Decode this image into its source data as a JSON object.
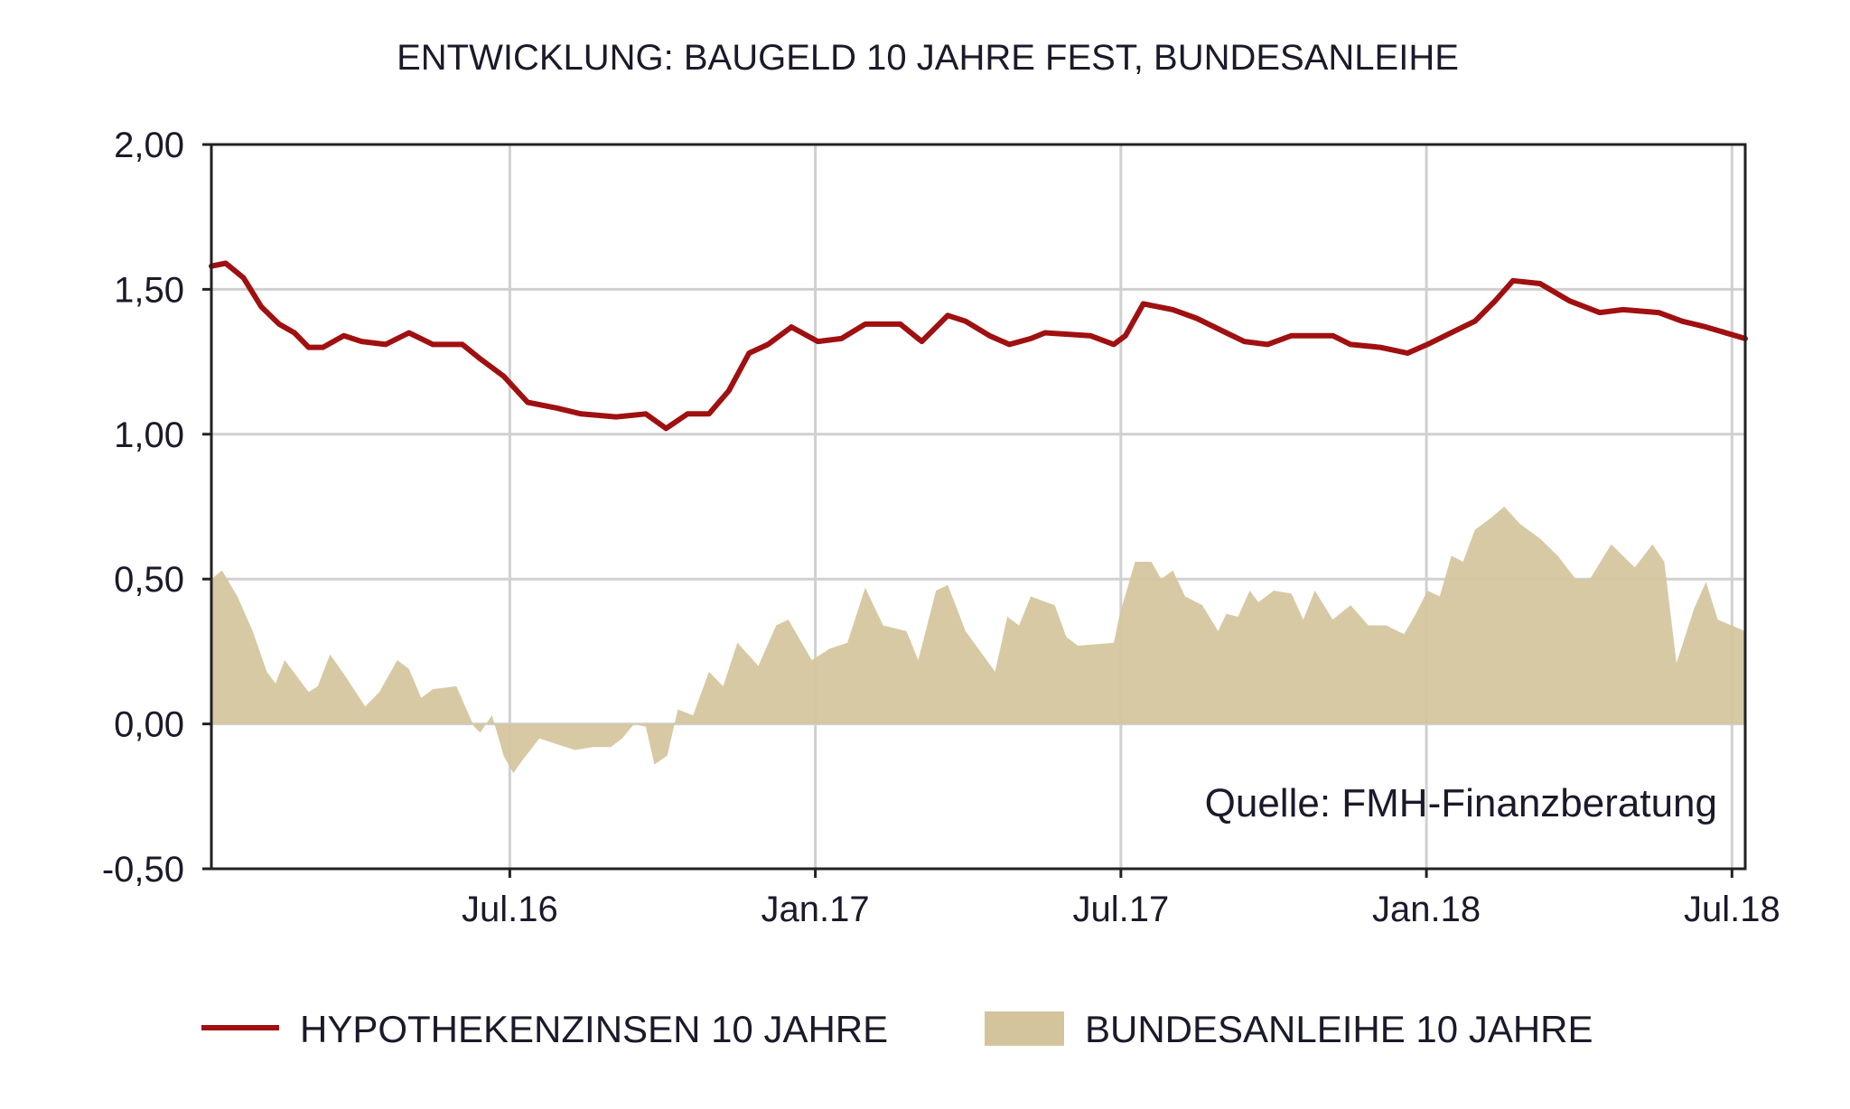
{
  "chart_data": {
    "type": "area",
    "title": "ENTWICKLUNG: BAUGELD 10 JAHRE FEST, BUNDESANLEIHE",
    "xlabel": "",
    "ylabel": "",
    "x_units": "months since Jan 2016",
    "xlim": [
      0.14,
      30.26
    ],
    "ylim": [
      -0.5,
      2.0
    ],
    "yticks": [
      -0.5,
      0.0,
      0.5,
      1.0,
      1.5,
      2.0
    ],
    "ytick_labels": [
      "-0,50",
      "0,00",
      "0,50",
      "1,00",
      "1,50",
      "2,00"
    ],
    "xticks": [
      6,
      12,
      18,
      24,
      30
    ],
    "xtick_labels": [
      "Jul.16",
      "Jan.17",
      "Jul.17",
      "Jan.18",
      "Jul.18"
    ],
    "grid": true,
    "legend_position": "bottom",
    "annotation": "Quelle: FMH-Finanzberatung",
    "series": [
      {
        "name": "HYPOTHEKENZINSEN 10 JAHRE",
        "kind": "line",
        "color": "#a01010",
        "points": [
          [
            0.14,
            1.58
          ],
          [
            0.42,
            1.59
          ],
          [
            0.77,
            1.54
          ],
          [
            1.12,
            1.44
          ],
          [
            1.47,
            1.38
          ],
          [
            1.77,
            1.35
          ],
          [
            2.05,
            1.3
          ],
          [
            2.33,
            1.3
          ],
          [
            2.74,
            1.34
          ],
          [
            3.09,
            1.32
          ],
          [
            3.56,
            1.31
          ],
          [
            4.02,
            1.35
          ],
          [
            4.49,
            1.31
          ],
          [
            5.07,
            1.31
          ],
          [
            5.42,
            1.26
          ],
          [
            5.88,
            1.2
          ],
          [
            6.35,
            1.11
          ],
          [
            6.93,
            1.09
          ],
          [
            7.4,
            1.07
          ],
          [
            8.09,
            1.06
          ],
          [
            8.67,
            1.07
          ],
          [
            9.07,
            1.02
          ],
          [
            9.49,
            1.07
          ],
          [
            9.91,
            1.07
          ],
          [
            10.3,
            1.15
          ],
          [
            10.7,
            1.28
          ],
          [
            11.07,
            1.31
          ],
          [
            11.53,
            1.37
          ],
          [
            12.05,
            1.32
          ],
          [
            12.51,
            1.33
          ],
          [
            12.98,
            1.38
          ],
          [
            13.67,
            1.38
          ],
          [
            14.09,
            1.32
          ],
          [
            14.6,
            1.41
          ],
          [
            14.95,
            1.39
          ],
          [
            15.42,
            1.34
          ],
          [
            15.81,
            1.31
          ],
          [
            16.23,
            1.33
          ],
          [
            16.51,
            1.35
          ],
          [
            17.4,
            1.34
          ],
          [
            17.86,
            1.31
          ],
          [
            18.09,
            1.34
          ],
          [
            18.44,
            1.45
          ],
          [
            19.02,
            1.43
          ],
          [
            19.49,
            1.4
          ],
          [
            20.07,
            1.35
          ],
          [
            20.42,
            1.32
          ],
          [
            20.88,
            1.31
          ],
          [
            21.35,
            1.34
          ],
          [
            22.16,
            1.34
          ],
          [
            22.51,
            1.31
          ],
          [
            23.09,
            1.3
          ],
          [
            23.63,
            1.28
          ],
          [
            24.02,
            1.31
          ],
          [
            24.6,
            1.36
          ],
          [
            24.95,
            1.39
          ],
          [
            25.35,
            1.46
          ],
          [
            25.7,
            1.53
          ],
          [
            26.23,
            1.52
          ],
          [
            26.81,
            1.46
          ],
          [
            27.4,
            1.42
          ],
          [
            27.86,
            1.43
          ],
          [
            28.56,
            1.42
          ],
          [
            29.02,
            1.39
          ],
          [
            29.49,
            1.37
          ],
          [
            30.26,
            1.33
          ]
        ]
      },
      {
        "name": "BUNDESANLEIHE 10 JAHRE",
        "kind": "area",
        "color": "#d4c49c",
        "points": [
          [
            0.14,
            0.5
          ],
          [
            0.35,
            0.53
          ],
          [
            0.65,
            0.44
          ],
          [
            0.95,
            0.32
          ],
          [
            1.23,
            0.18
          ],
          [
            1.4,
            0.14
          ],
          [
            1.58,
            0.22
          ],
          [
            2.05,
            0.11
          ],
          [
            2.23,
            0.13
          ],
          [
            2.47,
            0.24
          ],
          [
            2.79,
            0.16
          ],
          [
            3.16,
            0.06
          ],
          [
            3.44,
            0.11
          ],
          [
            3.79,
            0.22
          ],
          [
            4.02,
            0.19
          ],
          [
            4.26,
            0.09
          ],
          [
            4.49,
            0.12
          ],
          [
            4.95,
            0.13
          ],
          [
            5.3,
            -0.01
          ],
          [
            5.42,
            -0.03
          ],
          [
            5.65,
            0.03
          ],
          [
            5.88,
            -0.11
          ],
          [
            6.07,
            -0.17
          ],
          [
            6.23,
            -0.13
          ],
          [
            6.58,
            -0.05
          ],
          [
            6.93,
            -0.07
          ],
          [
            7.28,
            -0.09
          ],
          [
            7.63,
            -0.08
          ],
          [
            7.98,
            -0.08
          ],
          [
            8.21,
            -0.05
          ],
          [
            8.44,
            0.0
          ],
          [
            8.67,
            -0.01
          ],
          [
            8.84,
            -0.14
          ],
          [
            9.09,
            -0.11
          ],
          [
            9.3,
            0.05
          ],
          [
            9.6,
            0.03
          ],
          [
            9.91,
            0.18
          ],
          [
            10.19,
            0.13
          ],
          [
            10.47,
            0.28
          ],
          [
            10.88,
            0.2
          ],
          [
            11.23,
            0.34
          ],
          [
            11.47,
            0.36
          ],
          [
            11.93,
            0.22
          ],
          [
            12.28,
            0.26
          ],
          [
            12.63,
            0.28
          ],
          [
            12.98,
            0.47
          ],
          [
            13.33,
            0.34
          ],
          [
            13.79,
            0.32
          ],
          [
            14.02,
            0.22
          ],
          [
            14.37,
            0.46
          ],
          [
            14.6,
            0.48
          ],
          [
            14.95,
            0.32
          ],
          [
            15.53,
            0.18
          ],
          [
            15.77,
            0.37
          ],
          [
            16.0,
            0.34
          ],
          [
            16.23,
            0.44
          ],
          [
            16.7,
            0.41
          ],
          [
            16.93,
            0.3
          ],
          [
            17.16,
            0.27
          ],
          [
            17.86,
            0.28
          ],
          [
            17.98,
            0.38
          ],
          [
            18.28,
            0.56
          ],
          [
            18.6,
            0.56
          ],
          [
            18.79,
            0.5
          ],
          [
            19.02,
            0.53
          ],
          [
            19.26,
            0.44
          ],
          [
            19.6,
            0.41
          ],
          [
            19.91,
            0.32
          ],
          [
            20.07,
            0.38
          ],
          [
            20.3,
            0.37
          ],
          [
            20.53,
            0.46
          ],
          [
            20.7,
            0.42
          ],
          [
            21.0,
            0.46
          ],
          [
            21.35,
            0.45
          ],
          [
            21.58,
            0.36
          ],
          [
            21.81,
            0.46
          ],
          [
            22.16,
            0.36
          ],
          [
            22.51,
            0.41
          ],
          [
            22.86,
            0.34
          ],
          [
            23.21,
            0.34
          ],
          [
            23.56,
            0.31
          ],
          [
            23.79,
            0.38
          ],
          [
            24.02,
            0.46
          ],
          [
            24.26,
            0.44
          ],
          [
            24.49,
            0.58
          ],
          [
            24.72,
            0.56
          ],
          [
            24.95,
            0.67
          ],
          [
            25.26,
            0.71
          ],
          [
            25.53,
            0.75
          ],
          [
            25.84,
            0.69
          ],
          [
            26.23,
            0.64
          ],
          [
            26.58,
            0.58
          ],
          [
            26.93,
            0.5
          ],
          [
            27.21,
            0.5
          ],
          [
            27.63,
            0.62
          ],
          [
            28.09,
            0.54
          ],
          [
            28.44,
            0.62
          ],
          [
            28.67,
            0.56
          ],
          [
            28.91,
            0.21
          ],
          [
            29.26,
            0.4
          ],
          [
            29.49,
            0.49
          ],
          [
            29.72,
            0.36
          ],
          [
            30.26,
            0.32
          ]
        ]
      }
    ]
  }
}
